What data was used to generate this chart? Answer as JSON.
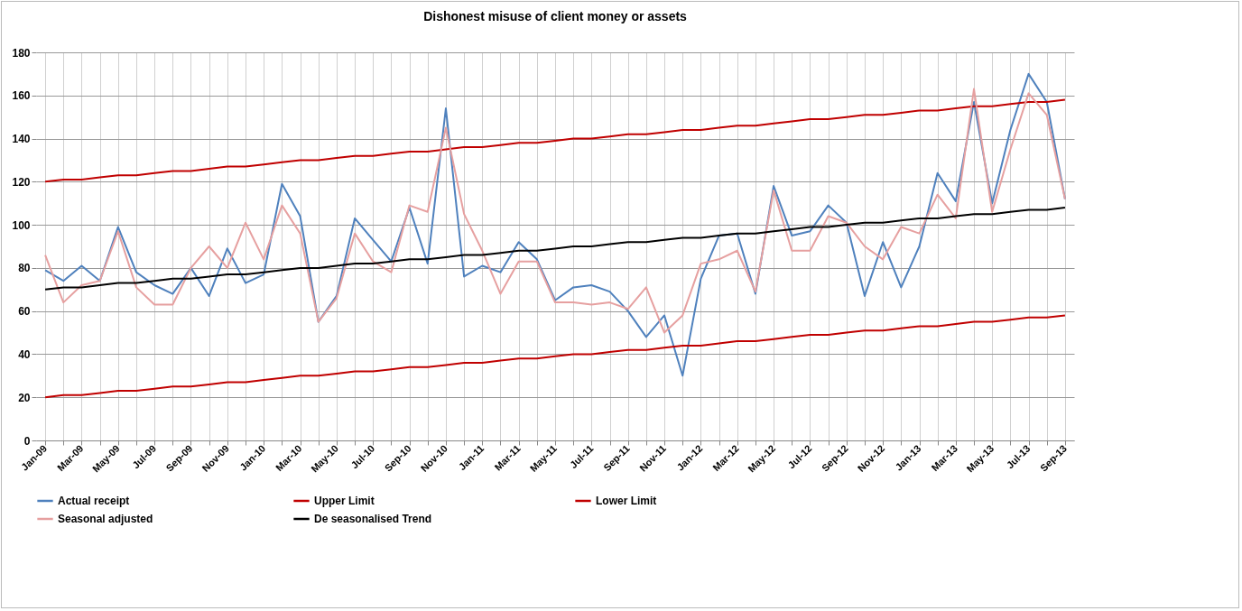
{
  "chart_data": {
    "type": "line",
    "title": "Dishonest misuse of client money or assets",
    "categories": [
      "Jan-09",
      null,
      "Mar-09",
      null,
      "May-09",
      null,
      "Jul-09",
      null,
      "Sep-09",
      null,
      "Nov-09",
      null,
      "Jan-10",
      null,
      "Mar-10",
      null,
      "May-10",
      null,
      "Jul-10",
      null,
      "Sep-10",
      null,
      "Nov-10",
      null,
      "Jan-11",
      null,
      "Mar-11",
      null,
      "May-11",
      null,
      "Jul-11",
      null,
      "Sep-11",
      null,
      "Nov-11",
      null,
      "Jan-12",
      null,
      "Mar-12",
      null,
      "May-12",
      null,
      "Jul-12",
      null,
      "Sep-12",
      null,
      "Nov-12",
      null,
      "Jan-13",
      null,
      "Mar-13",
      null,
      "May-13",
      null,
      "Jul-13",
      null,
      "Sep-13"
    ],
    "series": [
      {
        "name": "Actual receipt",
        "color": "#4f81bd",
        "values": [
          79,
          74,
          81,
          74,
          99,
          78,
          72,
          68,
          80,
          67,
          89,
          73,
          77,
          119,
          104,
          55,
          67,
          103,
          93,
          83,
          108,
          82,
          154,
          76,
          81,
          78,
          92,
          84,
          65,
          71,
          72,
          69,
          60,
          48,
          58,
          30,
          75,
          95,
          96,
          68,
          118,
          95,
          97,
          109,
          101,
          67,
          92,
          71,
          90,
          124,
          111,
          157,
          110,
          144,
          170,
          157,
          112
        ]
      },
      {
        "name": "Upper Limit",
        "color": "#c00000",
        "values": [
          120,
          121,
          121,
          122,
          123,
          123,
          124,
          125,
          125,
          126,
          127,
          127,
          128,
          129,
          130,
          130,
          131,
          132,
          132,
          133,
          134,
          134,
          135,
          136,
          136,
          137,
          138,
          138,
          139,
          140,
          140,
          141,
          142,
          142,
          143,
          144,
          144,
          145,
          146,
          146,
          147,
          148,
          149,
          149,
          150,
          151,
          151,
          152,
          153,
          153,
          154,
          155,
          155,
          156,
          157,
          157,
          158
        ]
      },
      {
        "name": "Lower Limit",
        "color": "#c00000",
        "values": [
          20,
          21,
          21,
          22,
          23,
          23,
          24,
          25,
          25,
          26,
          27,
          27,
          28,
          29,
          30,
          30,
          31,
          32,
          32,
          33,
          34,
          34,
          35,
          36,
          36,
          37,
          38,
          38,
          39,
          40,
          40,
          41,
          42,
          42,
          43,
          44,
          44,
          45,
          46,
          46,
          47,
          48,
          49,
          49,
          50,
          51,
          51,
          52,
          53,
          53,
          54,
          55,
          55,
          56,
          57,
          57,
          58
        ]
      },
      {
        "name": "Seasonal adjusted",
        "color": "#e6a0a0",
        "values": [
          86,
          64,
          72,
          74,
          97,
          71,
          63,
          63,
          80,
          90,
          80,
          101,
          84,
          109,
          96,
          55,
          66,
          96,
          83,
          78,
          109,
          106,
          145,
          105,
          88,
          68,
          83,
          83,
          64,
          64,
          63,
          64,
          61,
          71,
          50,
          58,
          82,
          84,
          88,
          69,
          116,
          88,
          88,
          104,
          101,
          90,
          84,
          99,
          96,
          114,
          103,
          163,
          106,
          135,
          161,
          151,
          112
        ]
      },
      {
        "name": "De seasonalised  Trend",
        "color": "#000000",
        "values": [
          70,
          71,
          71,
          72,
          73,
          73,
          74,
          75,
          75,
          76,
          77,
          77,
          78,
          79,
          80,
          80,
          81,
          82,
          82,
          83,
          84,
          84,
          85,
          86,
          86,
          87,
          88,
          88,
          89,
          90,
          90,
          91,
          92,
          92,
          93,
          94,
          94,
          95,
          96,
          96,
          97,
          98,
          99,
          99,
          100,
          101,
          101,
          102,
          103,
          103,
          104,
          105,
          105,
          106,
          107,
          107,
          108
        ]
      }
    ],
    "ylim": [
      0,
      180
    ],
    "yticks": [
      0,
      20,
      40,
      60,
      80,
      100,
      120,
      140,
      160,
      180
    ],
    "grid": true,
    "legend": "bottom"
  }
}
